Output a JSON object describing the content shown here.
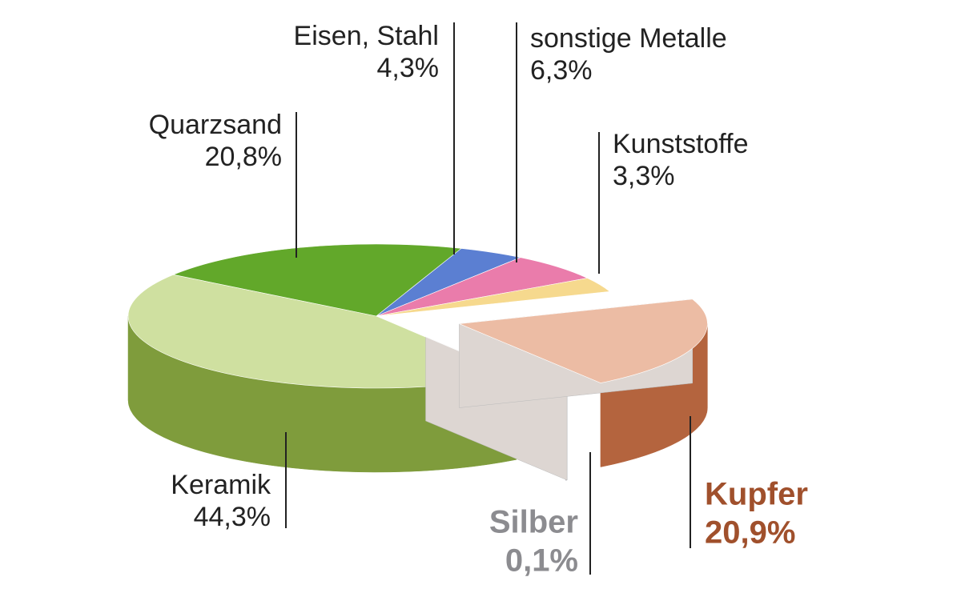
{
  "chart_data": {
    "type": "pie",
    "categories": [
      "Keramik",
      "Quarzsand",
      "Eisen, Stahl",
      "sonstige Metalle",
      "Kunststoffe",
      "Kupfer",
      "Silber"
    ],
    "values": [
      44.3,
      20.8,
      4.3,
      6.3,
      3.3,
      20.9,
      0.1
    ],
    "value_labels": [
      "44,3%",
      "20,8%",
      "4,3%",
      "6,3%",
      "3,3%",
      "20,9%",
      "0,1%"
    ],
    "colors": [
      "#cfe0a0",
      "#62a82a",
      "#5b7fd2",
      "#ea7cab",
      "#f6d98e",
      "#ecbca4",
      "#c8c8cc"
    ]
  }
}
